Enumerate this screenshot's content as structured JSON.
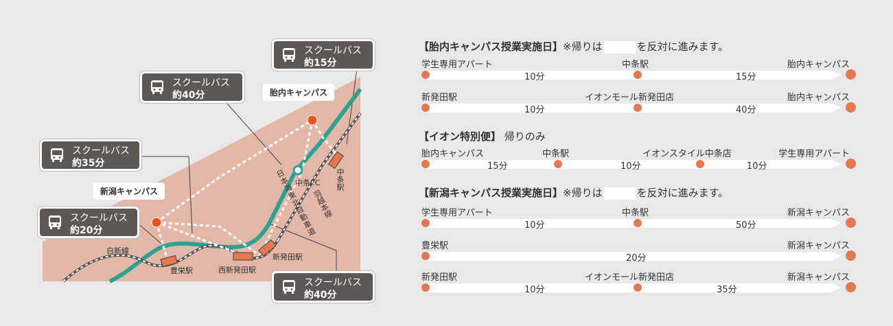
{
  "map": {
    "callouts": [
      {
        "line1": "スクールバス",
        "line2": "約15分"
      },
      {
        "line1": "スクールバス",
        "line2": "約40分"
      },
      {
        "line1": "スクールバス",
        "line2": "約35分"
      },
      {
        "line1": "スクールバス",
        "line2": "約20分"
      },
      {
        "line1": "スクールバス",
        "line2": "約40分"
      }
    ],
    "campus_tainai": "胎内キャンパス",
    "campus_niigata": "新潟キャンパス",
    "label_chujo_ic": "中条I.C",
    "label_chujo_station": "中条駅",
    "label_shinhatsuta_station": "新発田駅",
    "label_nishishinhatsuta_station": "西新発田駅",
    "label_hoei_station": "豊栄駅",
    "label_hakushin_line": "白新線",
    "label_uetsu_line": "羽越本線",
    "label_expressway": "日本海東北自動車道"
  },
  "sections": [
    {
      "heading_bold": "【胎内キャンパス授業実施日】",
      "heading_note_pre": "※帰りは",
      "heading_note_post": "を反対に進みます。",
      "routes": [
        {
          "stops": [
            "学生専用アパート",
            "中条駅",
            "胎内キャンパス"
          ],
          "times": [
            "10分",
            "15分"
          ]
        },
        {
          "stops": [
            "新発田駅",
            "イオンモール新発田店",
            "胎内キャンパス"
          ],
          "times": [
            "10分",
            "40分"
          ]
        }
      ]
    },
    {
      "heading_bold": "【イオン特別便】",
      "heading_note_pre": "帰りのみ",
      "routes": [
        {
          "stops": [
            "胎内キャンパス",
            "中条駅",
            "イオンスタイル中条店",
            "学生専用アパート"
          ],
          "times": [
            "15分",
            "10分",
            "10分"
          ]
        }
      ]
    },
    {
      "heading_bold": "【新潟キャンパス授業実施日】",
      "heading_note_pre": "※帰りは",
      "heading_note_post": "を反対に進みます。",
      "routes": [
        {
          "stops": [
            "学生専用アパート",
            "中条駅",
            "新潟キャンパス"
          ],
          "times": [
            "10分",
            "50分"
          ]
        },
        {
          "stops": [
            "豊栄駅",
            "新潟キャンパス"
          ],
          "times": [
            "20分"
          ]
        },
        {
          "stops": [
            "新発田駅",
            "イオンモール新発田店",
            "新潟キャンパス"
          ],
          "times": [
            "10分",
            "35分"
          ]
        }
      ]
    }
  ],
  "colors": {
    "accent_orange": "#e4794f",
    "rail_green": "#2aa394",
    "area_pink": "#e3b8a8",
    "callout_gray": "#5e5855"
  }
}
